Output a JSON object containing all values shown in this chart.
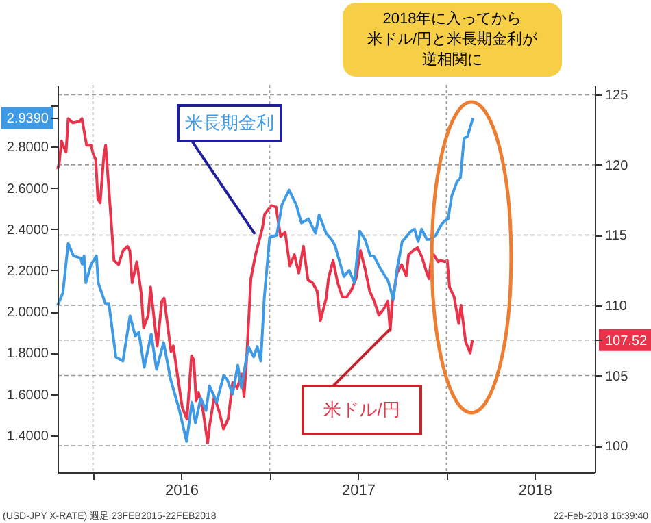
{
  "chart_data": {
    "type": "line",
    "xlim": [
      2015.8,
      2018.84
    ],
    "xticks": [
      {
        "value": 2016,
        "label": null
      },
      {
        "value": 2016.5,
        "label": "2016"
      },
      {
        "value": 2017,
        "label": null
      },
      {
        "value": 2017.5,
        "label": "2017"
      },
      {
        "value": 2018,
        "label": null
      },
      {
        "value": 2018.5,
        "label": "2018"
      }
    ],
    "ylim": [
      1.22,
      3.1
    ],
    "yticks": [
      {
        "value": 1.4,
        "label": "1.4000"
      },
      {
        "value": 1.6,
        "label": "1.6000"
      },
      {
        "value": 1.8,
        "label": "1.8000"
      },
      {
        "value": 2.0,
        "label": "2.0000"
      },
      {
        "value": 2.2,
        "label": "2.2000"
      },
      {
        "value": 2.4,
        "label": "2.4000"
      },
      {
        "value": 2.6,
        "label": "2.6000"
      },
      {
        "value": 2.8,
        "label": "2.8000"
      },
      {
        "value": 2.939,
        "label": "2.9390"
      },
      {
        "value": 3.0,
        "label": null
      }
    ],
    "y2lim": [
      98.1,
      125.7
    ],
    "y2ticks": [
      100,
      105,
      {
        "value": 107.52,
        "label": "107.52"
      },
      110,
      115,
      120,
      125
    ],
    "grid": true,
    "series": [
      {
        "name": "米長期金利",
        "color": "#3f9ae6",
        "axis": "y",
        "x": [
          2015.8,
          2015.83,
          2015.86,
          2015.89,
          2015.93,
          2015.94,
          2015.95,
          2015.96,
          2015.99,
          2016.02,
          2016.03,
          2016.07,
          2016.09,
          2016.13,
          2016.17,
          2016.21,
          2016.24,
          2016.26,
          2016.29,
          2016.33,
          2016.36,
          2016.4,
          2016.44,
          2016.49,
          2016.53,
          2016.56,
          2016.58,
          2016.61,
          2016.64,
          2016.66,
          2016.7,
          2016.74,
          2016.76,
          2016.79,
          2016.82,
          2016.84,
          2016.87,
          2016.88,
          2016.91,
          2016.93,
          2016.95,
          2016.97,
          2017.0,
          2017.04,
          2017.07,
          2017.11,
          2017.15,
          2017.18,
          2017.22,
          2017.26,
          2017.28,
          2017.32,
          2017.35,
          2017.37,
          2017.4,
          2017.42,
          2017.45,
          2017.48,
          2017.51,
          2017.54,
          2017.57,
          2017.59,
          2017.62,
          2017.64,
          2017.67,
          2017.7,
          2017.72,
          2017.75,
          2017.77,
          2017.8,
          2017.82,
          2017.84,
          2017.86,
          2017.89,
          2017.91,
          2017.94,
          2017.97,
          2017.99,
          2018.01,
          2018.03,
          2018.06,
          2018.08,
          2018.1,
          2018.12,
          2018.15
        ],
        "values": [
          2.03,
          2.09,
          2.33,
          2.27,
          2.26,
          2.23,
          2.27,
          2.14,
          2.23,
          2.27,
          2.14,
          2.04,
          2.04,
          1.78,
          1.76,
          1.98,
          1.88,
          1.9,
          1.73,
          1.89,
          1.72,
          1.85,
          1.67,
          1.52,
          1.37,
          1.56,
          1.46,
          1.58,
          1.52,
          1.64,
          1.56,
          1.69,
          1.67,
          1.6,
          1.74,
          1.63,
          1.78,
          1.83,
          1.78,
          1.83,
          1.76,
          2.07,
          2.36,
          2.37,
          2.52,
          2.59,
          2.52,
          2.43,
          2.45,
          2.38,
          2.47,
          2.38,
          2.35,
          2.32,
          2.23,
          2.17,
          2.2,
          2.14,
          2.39,
          2.35,
          2.27,
          2.27,
          2.22,
          2.19,
          2.15,
          2.06,
          2.2,
          2.34,
          2.36,
          2.39,
          2.4,
          2.34,
          2.4,
          2.35,
          2.35,
          2.37,
          2.42,
          2.44,
          2.45,
          2.56,
          2.63,
          2.65,
          2.84,
          2.85,
          2.939
        ],
        "marker": "none"
      },
      {
        "name": "米ドル/円",
        "color": "#e8334a",
        "axis": "y2",
        "x": [
          2015.8,
          2015.809,
          2015.822,
          2015.848,
          2015.86,
          2015.886,
          2015.925,
          2015.938,
          2015.964,
          2015.99,
          2016.003,
          2016.016,
          2016.028,
          2016.041,
          2016.062,
          2016.072,
          2016.093,
          2016.119,
          2016.145,
          2016.171,
          2016.196,
          2016.209,
          2016.222,
          2016.248,
          2016.274,
          2016.287,
          2016.313,
          2016.326,
          2016.364,
          2016.39,
          2016.403,
          2016.442,
          2016.455,
          2016.481,
          2016.506,
          2016.532,
          2016.558,
          2016.571,
          2016.584,
          2016.597,
          2016.623,
          2016.649,
          2016.661,
          2016.687,
          2016.713,
          2016.739,
          2016.765,
          2016.791,
          2016.817,
          2016.842,
          2016.855,
          2016.868,
          2016.894,
          2016.92,
          2016.959,
          2016.972,
          2017.01,
          2017.036,
          2017.062,
          2017.088,
          2017.114,
          2017.14,
          2017.165,
          2017.191,
          2017.217,
          2017.243,
          2017.269,
          2017.287,
          2017.32,
          2017.333,
          2017.359,
          2017.385,
          2017.411,
          2017.437,
          2017.463,
          2017.489,
          2017.514,
          2017.54,
          2017.566,
          2017.592,
          2017.618,
          2017.644,
          2017.669,
          2017.682,
          2017.695,
          2017.721,
          2017.747,
          2017.773,
          2017.786,
          2017.812,
          2017.837,
          2017.863,
          2017.889,
          2017.902,
          2017.915,
          2017.928,
          2017.954,
          2017.967,
          2017.992,
          2018.005,
          2018.018,
          2018.044,
          2018.07,
          2018.083,
          2018.109,
          2018.135,
          2018.147
        ],
        "values": [
          119.7,
          120.1,
          121.7,
          120.9,
          123.3,
          123.0,
          123.1,
          123.3,
          121.4,
          121.4,
          120.7,
          120.4,
          117.6,
          117.3,
          120.7,
          121.4,
          117.8,
          113.2,
          112.9,
          113.9,
          114.2,
          113.9,
          111.6,
          113.1,
          110.8,
          108.4,
          109.3,
          111.3,
          107.1,
          110.3,
          110.5,
          106.7,
          107.1,
          104.8,
          102.7,
          101.9,
          106.4,
          106.1,
          103.2,
          103.8,
          102.5,
          100.2,
          101.5,
          103.5,
          102.5,
          101.2,
          101.9,
          104.5,
          104.1,
          105.1,
          103.5,
          105.8,
          111.9,
          113.6,
          115.5,
          116.5,
          117.1,
          117.0,
          114.9,
          115.2,
          112.8,
          113.6,
          112.3,
          114.2,
          111.8,
          111.6,
          111.0,
          108.9,
          110.5,
          111.9,
          113.2,
          111.6,
          110.6,
          110.6,
          111.1,
          111.9,
          113.9,
          112.6,
          111.0,
          110.3,
          109.3,
          109.7,
          110.3,
          108.2,
          110.3,
          112.3,
          112.9,
          112.1,
          113.6,
          113.9,
          114.1,
          113.4,
          112.3,
          111.9,
          113.4,
          113.6,
          113.1,
          113.2,
          113.1,
          113.2,
          111.3,
          110.6,
          108.7,
          110.0,
          107.4,
          106.6,
          107.52
        ],
        "marker": "none"
      }
    ],
    "annotations": [
      "2018年に入ってから",
      "米ドル/円と米長期金利が",
      "逆相関に",
      "(USD-JPY X-RATE) 週足 23FEB2015-22FEB2018",
      "22-Feb-2018 16:39:40"
    ]
  }
}
